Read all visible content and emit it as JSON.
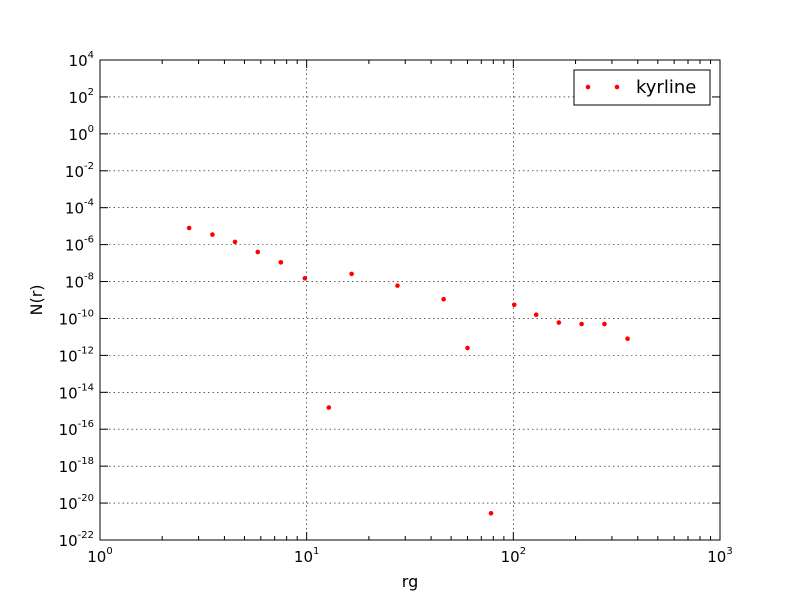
{
  "chart_data": {
    "type": "scatter",
    "title": "",
    "xlabel": "rg",
    "ylabel": "N(r)",
    "xscale": "log",
    "yscale": "log",
    "xlim": [
      1,
      1000
    ],
    "ylim": [
      1e-22,
      10000.0
    ],
    "grid": true,
    "legend_position": "top-right",
    "x_tick_labels": [
      {
        "value": 1,
        "base": "10",
        "exp": "0"
      },
      {
        "value": 10,
        "base": "10",
        "exp": "1"
      },
      {
        "value": 100,
        "base": "10",
        "exp": "2"
      },
      {
        "value": 1000,
        "base": "10",
        "exp": "3"
      }
    ],
    "y_tick_labels": [
      {
        "value": 1e-22,
        "base": "10",
        "exp": "-22"
      },
      {
        "value": 1e-20,
        "base": "10",
        "exp": "-20"
      },
      {
        "value": 1e-18,
        "base": "10",
        "exp": "-18"
      },
      {
        "value": 1e-16,
        "base": "10",
        "exp": "-16"
      },
      {
        "value": 1e-14,
        "base": "10",
        "exp": "-14"
      },
      {
        "value": 1e-12,
        "base": "10",
        "exp": "-12"
      },
      {
        "value": 1e-10,
        "base": "10",
        "exp": "-10"
      },
      {
        "value": 1e-08,
        "base": "10",
        "exp": "-8"
      },
      {
        "value": 1e-06,
        "base": "10",
        "exp": "-6"
      },
      {
        "value": 0.0001,
        "base": "10",
        "exp": "-4"
      },
      {
        "value": 0.01,
        "base": "10",
        "exp": "-2"
      },
      {
        "value": 1,
        "base": "10",
        "exp": "0"
      },
      {
        "value": 100,
        "base": "10",
        "exp": "2"
      },
      {
        "value": 10000,
        "base": "10",
        "exp": "4"
      }
    ],
    "series": [
      {
        "name": "kyrline",
        "color": "#ff0000",
        "marker": "point",
        "points": [
          {
            "x": 2.7,
            "y": 8e-06
          },
          {
            "x": 3.5,
            "y": 3.5e-06
          },
          {
            "x": 4.5,
            "y": 1.4e-06
          },
          {
            "x": 5.8,
            "y": 4e-07
          },
          {
            "x": 7.5,
            "y": 1.1e-07
          },
          {
            "x": 9.8,
            "y": 1.5e-08
          },
          {
            "x": 12.8,
            "y": 1.5e-15
          },
          {
            "x": 16.5,
            "y": 2.6e-08
          },
          {
            "x": 27.5,
            "y": 6e-09
          },
          {
            "x": 46,
            "y": 1.1e-09
          },
          {
            "x": 60,
            "y": 2.5e-12
          },
          {
            "x": 78,
            "y": 2.8e-21
          },
          {
            "x": 101,
            "y": 5.5e-10
          },
          {
            "x": 129,
            "y": 1.6e-10
          },
          {
            "x": 166,
            "y": 6e-11
          },
          {
            "x": 214,
            "y": 5e-11
          },
          {
            "x": 276,
            "y": 5e-11
          },
          {
            "x": 357,
            "y": 8e-12
          }
        ]
      }
    ]
  }
}
